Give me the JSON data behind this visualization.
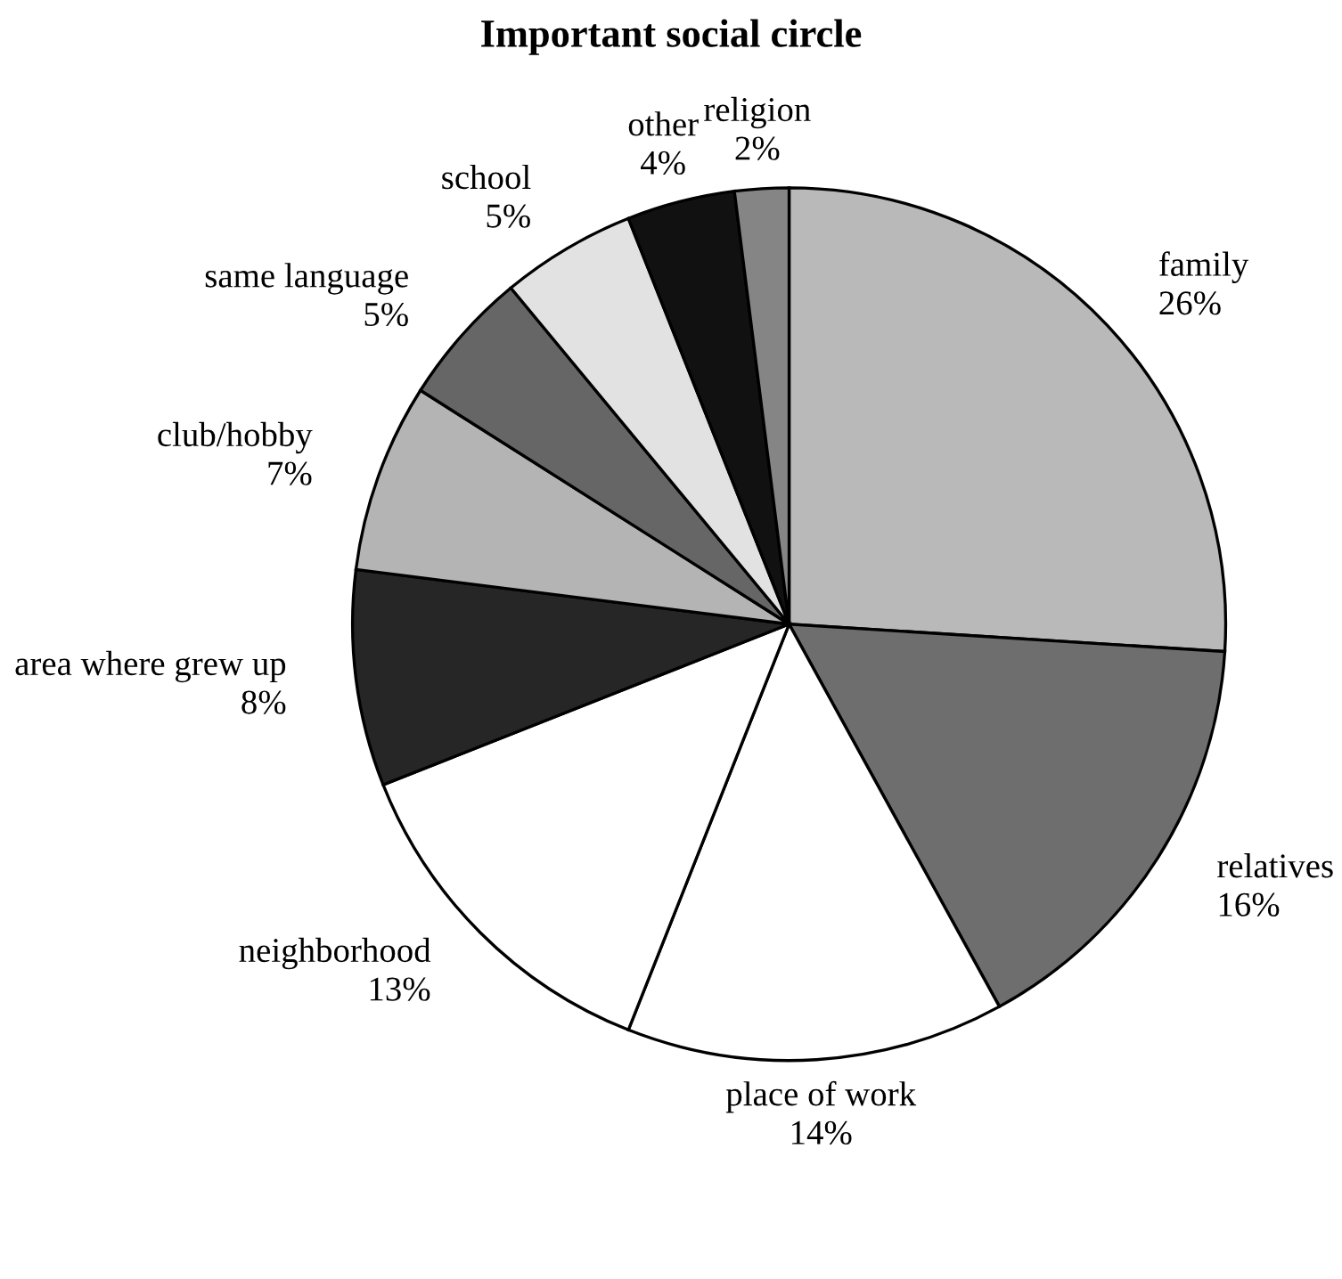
{
  "chart_data": {
    "type": "pie",
    "title": "Important social circle",
    "categories": [
      "family",
      "relatives",
      "place of work",
      "neighborhood",
      "area where grew up",
      "club/hobby",
      "same language",
      "school",
      "other",
      "religion"
    ],
    "values": [
      26,
      16,
      14,
      13,
      8,
      7,
      5,
      5,
      4,
      2
    ],
    "value_labels": [
      "26%",
      "16%",
      "14%",
      "13%",
      "8%",
      "7%",
      "5%",
      "5%",
      "4%",
      "2%"
    ],
    "colors": [
      "#b9b9b9",
      "#6e6e6e",
      "#ffffff",
      "#ffffff",
      "#262626",
      "#b4b4b4",
      "#666666",
      "#e2e2e2",
      "#111111",
      "#858585"
    ],
    "legend": false
  }
}
